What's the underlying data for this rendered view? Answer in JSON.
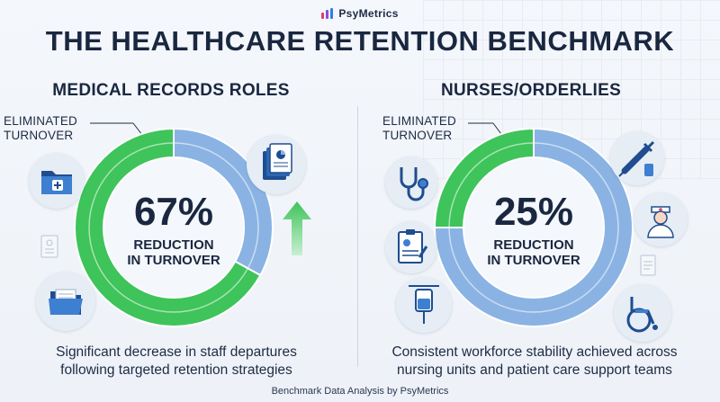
{
  "brand": {
    "name": "PsyMetrics",
    "bar_colors": [
      "#e23b6b",
      "#8a4fd6",
      "#2f7cf0"
    ]
  },
  "title": "THE HEALTHCARE RETENTION BENCHMARK",
  "colors": {
    "eliminated": "#3ec45a",
    "remaining": "#8ab3e3",
    "text": "#1a2740"
  },
  "panels": [
    {
      "title": "MEDICAL RECORDS ROLES",
      "callout": [
        "ELIMINATED",
        "TURNOVER"
      ],
      "percent": "67%",
      "percent_label": [
        "REDUCTION",
        "IN TURNOVER"
      ],
      "caption": [
        "Significant decrease in staff departures",
        "following targeted retention strategies"
      ],
      "icons": [
        "folder-plus-icon",
        "document-stack-icon",
        "report-icon",
        "open-folder-icon",
        "up-arrow-icon"
      ]
    },
    {
      "title": "NURSES/ORDERLIES",
      "callout": [
        "ELIMINATED",
        "TURNOVER"
      ],
      "percent": "25%",
      "percent_label": [
        "REDUCTION",
        "IN TURNOVER"
      ],
      "caption": [
        "Consistent workforce stability achieved across",
        "nursing units and patient care support teams"
      ],
      "icons": [
        "stethoscope-icon",
        "syringe-icon",
        "nurse-icon",
        "clipboard-icon",
        "iv-bag-icon",
        "wheelchair-icon",
        "report-icon"
      ]
    }
  ],
  "chart_data": [
    {
      "type": "pie",
      "title": "MEDICAL RECORDS ROLES",
      "slices": [
        {
          "label": "ELIMINATED TURNOVER",
          "value": 67
        },
        {
          "label": "",
          "value": 33
        }
      ],
      "center_label": "67% REDUCTION IN TURNOVER"
    },
    {
      "type": "pie",
      "title": "NURSES/ORDERLIES",
      "slices": [
        {
          "label": "ELIMINATED TURNOVER",
          "value": 25
        },
        {
          "label": "",
          "value": 75
        }
      ],
      "center_label": "25% REDUCTION IN TURNOVER"
    }
  ],
  "footer": "Benchmark Data Analysis by PsyMetrics"
}
